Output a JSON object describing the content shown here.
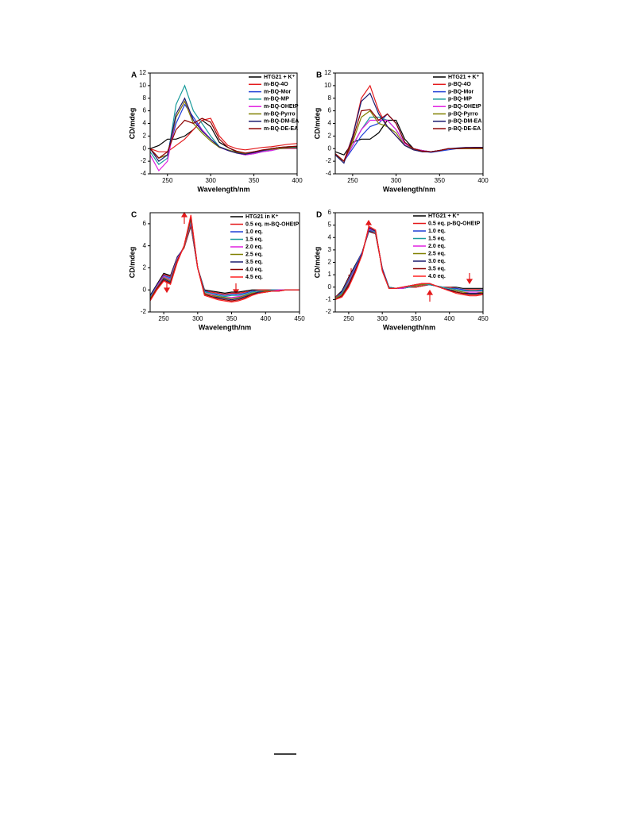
{
  "chart_data": [
    {
      "type": "line",
      "panel_label": "A",
      "xlabel": "Wavelength/nm",
      "ylabel": "CD/mdeg",
      "x": [
        230,
        240,
        250,
        260,
        270,
        280,
        290,
        300,
        310,
        320,
        330,
        340,
        350,
        360,
        370,
        380,
        390,
        400
      ],
      "xlim": [
        230,
        400
      ],
      "ylim": [
        -4,
        12
      ],
      "xticks": [
        250,
        300,
        350,
        400
      ],
      "yticks": [
        -4,
        -2,
        0,
        2,
        4,
        6,
        8,
        10,
        12
      ],
      "series": [
        {
          "name": "HTG21 + K⁺",
          "color": "#000000",
          "values": [
            0,
            0.5,
            1.5,
            1.5,
            2,
            3,
            4.5,
            3.5,
            1,
            0.2,
            -0.5,
            -0.8,
            -0.5,
            -0.3,
            0,
            0.2,
            0.2,
            0.2
          ]
        },
        {
          "name": "m-BQ-4O",
          "color": "#e41a1c",
          "values": [
            0,
            -0.5,
            -0.5,
            0.5,
            1.5,
            3,
            4.5,
            4.8,
            2,
            0.5,
            0,
            -0.2,
            0,
            0.2,
            0.3,
            0.5,
            0.7,
            0.8
          ]
        },
        {
          "name": "m-BQ-Mor",
          "color": "#1f3fd6",
          "values": [
            0,
            -1.5,
            -1,
            4,
            7,
            5,
            3,
            1.5,
            0.3,
            -0.2,
            -0.6,
            -0.9,
            -0.7,
            -0.4,
            -0.2,
            0,
            0.1,
            0.1
          ]
        },
        {
          "name": "m-BQ-MP",
          "color": "#1a9c9c",
          "values": [
            -0.5,
            -2.5,
            -1.5,
            7,
            10,
            6,
            4,
            2,
            0.3,
            -0.2,
            -0.7,
            -1,
            -0.8,
            -0.5,
            -0.3,
            0,
            0.1,
            0.2
          ]
        },
        {
          "name": "m-BQ-OHEtP",
          "color": "#e020e0",
          "values": [
            -1,
            -3.5,
            -2,
            5,
            7.5,
            4.5,
            3,
            1.5,
            0.2,
            -0.3,
            -0.7,
            -1,
            -0.8,
            -0.5,
            -0.3,
            0,
            0,
            0
          ]
        },
        {
          "name": "m-BQ-Pyrro",
          "color": "#808000",
          "values": [
            0,
            -1.5,
            -1,
            5,
            7.5,
            4,
            2.5,
            1.2,
            0.2,
            -0.2,
            -0.6,
            -0.8,
            -0.6,
            -0.3,
            -0.1,
            0,
            0.1,
            0.1
          ]
        },
        {
          "name": "m-BQ-DM-EA",
          "color": "#1a1a6e",
          "values": [
            0,
            -2,
            -1,
            5.5,
            8,
            4.5,
            2.8,
            1.5,
            0.3,
            -0.3,
            -0.7,
            -0.9,
            -0.6,
            -0.3,
            0,
            0.2,
            0.3,
            0.3
          ]
        },
        {
          "name": "m-BQ-DE-EA",
          "color": "#8b0000",
          "values": [
            0,
            -1.5,
            -0.5,
            3,
            4.5,
            4,
            4.8,
            4.2,
            1.5,
            0.2,
            -0.4,
            -0.7,
            -0.5,
            -0.2,
            0,
            0.2,
            0.3,
            0.4
          ]
        }
      ]
    },
    {
      "type": "line",
      "panel_label": "B",
      "xlabel": "Wavelength/nm",
      "ylabel": "CD/mdeg",
      "x": [
        230,
        240,
        250,
        260,
        270,
        280,
        290,
        300,
        310,
        320,
        330,
        340,
        350,
        360,
        370,
        380,
        390,
        400
      ],
      "xlim": [
        230,
        400
      ],
      "ylim": [
        -4,
        12
      ],
      "xticks": [
        250,
        300,
        350,
        400
      ],
      "yticks": [
        -4,
        -2,
        0,
        2,
        4,
        6,
        8,
        10,
        12
      ],
      "series": [
        {
          "name": "HTG21 + K⁺",
          "color": "#000000",
          "values": [
            -0.5,
            -1,
            1,
            1.5,
            1.5,
            2.5,
            4.5,
            4.5,
            1.5,
            0,
            -0.3,
            -0.5,
            -0.3,
            0,
            0,
            0.1,
            0.2,
            0.2
          ]
        },
        {
          "name": "p-BQ-4O",
          "color": "#e41a1c",
          "values": [
            -1,
            -2,
            2,
            8,
            10,
            6,
            3.5,
            2,
            0.5,
            -0.2,
            -0.5,
            -0.5,
            -0.3,
            0,
            0,
            0,
            0,
            0
          ]
        },
        {
          "name": "p-BQ-Mor",
          "color": "#1f3fd6",
          "values": [
            -1,
            -2,
            0,
            2,
            3.5,
            4,
            5.5,
            4,
            1,
            0,
            -0.4,
            -0.6,
            -0.4,
            -0.2,
            0,
            0,
            0,
            0
          ]
        },
        {
          "name": "p-BQ-MP",
          "color": "#1a9c9c",
          "values": [
            -1,
            -2,
            0.5,
            3,
            5,
            5,
            4.5,
            3,
            0.8,
            0,
            -0.4,
            -0.5,
            -0.3,
            0,
            0,
            0,
            0,
            0
          ]
        },
        {
          "name": "p-BQ-OHEtP",
          "color": "#e020e0",
          "values": [
            -1,
            -2,
            0.5,
            3,
            4.5,
            4.5,
            4.5,
            3,
            0.8,
            0,
            -0.3,
            -0.5,
            -0.3,
            0,
            0,
            0,
            0,
            0
          ]
        },
        {
          "name": "p-BQ-Pyrro",
          "color": "#808000",
          "values": [
            -1,
            -2,
            1,
            5,
            6,
            4,
            3.5,
            2.5,
            0.5,
            0,
            -0.4,
            -0.5,
            -0.3,
            0,
            0,
            0,
            0,
            0
          ]
        },
        {
          "name": "p-BQ-DM-EA",
          "color": "#1a1a6e",
          "values": [
            -1,
            -2.3,
            2,
            7.5,
            8.8,
            5.5,
            3.5,
            2,
            0.5,
            -0.2,
            -0.5,
            -0.5,
            -0.3,
            0,
            0.1,
            0.2,
            0.2,
            0.2
          ]
        },
        {
          "name": "p-BQ-DE-EA",
          "color": "#8b0000",
          "values": [
            -0.8,
            -2,
            1.5,
            6,
            6.2,
            4.5,
            5.5,
            4,
            1,
            0,
            -0.4,
            -0.5,
            -0.3,
            0,
            0,
            0.1,
            0.1,
            0.1
          ]
        }
      ]
    },
    {
      "type": "line",
      "panel_label": "C",
      "xlabel": "Wavelength/nm",
      "ylabel": "CD/mdeg",
      "x": [
        230,
        240,
        250,
        260,
        270,
        280,
        290,
        300,
        310,
        320,
        330,
        340,
        350,
        360,
        370,
        380,
        390,
        400,
        410,
        420,
        430,
        440,
        450
      ],
      "xlim": [
        230,
        450
      ],
      "ylim": [
        -2,
        7
      ],
      "xticks": [
        250,
        300,
        350,
        400,
        450
      ],
      "yticks": [
        -2,
        0,
        2,
        4,
        6
      ],
      "series": [
        {
          "name": "HTG21  in K⁺",
          "color": "#000000",
          "values": [
            -0.5,
            0.5,
            1.5,
            1.3,
            3,
            3.8,
            5.8,
            2,
            0,
            -0.1,
            -0.2,
            -0.3,
            -0.2,
            -0.2,
            -0.1,
            0,
            0,
            0,
            0,
            0,
            0,
            0,
            0
          ]
        },
        {
          "name": "0.5 eq. m-BQ-OHEtP",
          "color": "#e41a1c",
          "values": [
            -0.6,
            0.4,
            1.4,
            1.2,
            2.9,
            3.8,
            5.9,
            2,
            -0.1,
            -0.2,
            -0.3,
            -0.4,
            -0.3,
            -0.3,
            -0.2,
            -0.1,
            0,
            0,
            0,
            0,
            0,
            0,
            0
          ]
        },
        {
          "name": "1.0 eq.",
          "color": "#1f3fd6",
          "values": [
            -0.6,
            0.4,
            1.3,
            1.1,
            2.9,
            3.9,
            6.1,
            2,
            -0.1,
            -0.3,
            -0.4,
            -0.5,
            -0.4,
            -0.4,
            -0.3,
            -0.1,
            -0.1,
            -0.1,
            0,
            0,
            0,
            0,
            0
          ]
        },
        {
          "name": "1.5 eq.",
          "color": "#1a9c9c",
          "values": [
            -0.7,
            0.3,
            1.2,
            1,
            2.8,
            3.9,
            6.2,
            2,
            -0.2,
            -0.3,
            -0.5,
            -0.6,
            -0.5,
            -0.5,
            -0.4,
            -0.2,
            -0.1,
            -0.1,
            0,
            0,
            0,
            0,
            0
          ]
        },
        {
          "name": "2.0 eq.",
          "color": "#e020e0",
          "values": [
            -0.8,
            0.3,
            1.2,
            0.9,
            2.8,
            3.9,
            6.3,
            2,
            -0.3,
            -0.4,
            -0.6,
            -0.7,
            -0.7,
            -0.6,
            -0.5,
            -0.3,
            -0.2,
            -0.1,
            -0.1,
            0,
            0,
            0,
            0
          ]
        },
        {
          "name": "2.5 eq.",
          "color": "#808000",
          "values": [
            -0.8,
            0.2,
            1.1,
            0.8,
            2.7,
            3.9,
            6.4,
            2,
            -0.3,
            -0.5,
            -0.6,
            -0.7,
            -0.8,
            -0.7,
            -0.5,
            -0.3,
            -0.2,
            -0.1,
            -0.1,
            -0.1,
            0,
            0,
            0
          ]
        },
        {
          "name": "3.5 eq.",
          "color": "#1a1a6e",
          "values": [
            -0.9,
            0.1,
            1,
            0.7,
            2.6,
            4,
            6.6,
            2,
            -0.4,
            -0.6,
            -0.7,
            -0.8,
            -0.9,
            -0.8,
            -0.6,
            -0.4,
            -0.2,
            -0.2,
            -0.1,
            -0.1,
            0,
            0,
            0
          ]
        },
        {
          "name": "4.0 eq.",
          "color": "#8b0000",
          "values": [
            -0.9,
            0.1,
            0.9,
            0.6,
            2.6,
            4,
            6.7,
            2,
            -0.4,
            -0.6,
            -0.8,
            -0.9,
            -1,
            -0.9,
            -0.7,
            -0.4,
            -0.3,
            -0.2,
            -0.1,
            -0.1,
            0,
            0,
            0
          ]
        },
        {
          "name": "4.5 eq.",
          "color": "#ff2020",
          "values": [
            -1,
            0,
            0.8,
            0.5,
            2.5,
            4,
            6.8,
            2,
            -0.5,
            -0.7,
            -0.9,
            -1,
            -1.1,
            -1,
            -0.8,
            -0.5,
            -0.3,
            -0.2,
            -0.1,
            -0.1,
            0,
            0,
            0
          ]
        }
      ]
    },
    {
      "type": "line",
      "panel_label": "D",
      "xlabel": "Wavelength/nm",
      "ylabel": "CD/mdeg",
      "x": [
        230,
        240,
        250,
        260,
        270,
        280,
        290,
        300,
        310,
        320,
        330,
        340,
        350,
        360,
        370,
        380,
        390,
        400,
        410,
        420,
        430,
        440,
        450
      ],
      "xlim": [
        230,
        450
      ],
      "ylim": [
        -2,
        6
      ],
      "xticks": [
        250,
        300,
        350,
        400,
        450
      ],
      "yticks": [
        -2,
        -1,
        0,
        1,
        2,
        3,
        4,
        5,
        6
      ],
      "series": [
        {
          "name": "HTG21 + K⁺",
          "color": "#000000",
          "values": [
            -0.8,
            -0.3,
            0.8,
            1.8,
            2.8,
            4.5,
            4.3,
            1.5,
            0,
            -0.1,
            -0.1,
            0,
            0,
            0.1,
            0.2,
            0.1,
            0,
            0,
            0,
            -0.1,
            -0.1,
            -0.1,
            -0.1
          ]
        },
        {
          "name": "0.5 eq. p-BQ-OHEtP",
          "color": "#e41a1c",
          "values": [
            -0.8,
            -0.4,
            0.7,
            1.7,
            2.8,
            4.6,
            4.3,
            1.5,
            0,
            -0.1,
            -0.1,
            0,
            0,
            0.1,
            0.2,
            0.1,
            0,
            0,
            -0.1,
            -0.2,
            -0.2,
            -0.2,
            -0.2
          ]
        },
        {
          "name": "1.0 eq.",
          "color": "#1f3fd6",
          "values": [
            -0.9,
            -0.4,
            0.6,
            1.7,
            2.8,
            4.6,
            4.4,
            1.5,
            0,
            -0.1,
            -0.1,
            0,
            0.1,
            0.2,
            0.2,
            0.1,
            0,
            -0.1,
            -0.1,
            -0.2,
            -0.3,
            -0.3,
            -0.2
          ]
        },
        {
          "name": "1.5 eq.",
          "color": "#1a9c9c",
          "values": [
            -0.9,
            -0.5,
            0.5,
            1.6,
            2.7,
            4.7,
            4.4,
            1.4,
            0,
            -0.1,
            -0.1,
            0,
            0.1,
            0.2,
            0.2,
            0.1,
            0,
            -0.1,
            -0.2,
            -0.3,
            -0.3,
            -0.3,
            -0.3
          ]
        },
        {
          "name": "2.0 eq.",
          "color": "#e020e0",
          "values": [
            -0.9,
            -0.6,
            0.4,
            1.5,
            2.7,
            4.7,
            4.5,
            1.4,
            -0.1,
            -0.1,
            -0.1,
            0.1,
            0.1,
            0.2,
            0.3,
            0.1,
            -0.1,
            -0.2,
            -0.3,
            -0.4,
            -0.4,
            -0.4,
            -0.4
          ]
        },
        {
          "name": "2.5 eq.",
          "color": "#808000",
          "values": [
            -0.9,
            -0.6,
            0.3,
            1.4,
            2.7,
            4.8,
            4.5,
            1.4,
            -0.1,
            -0.1,
            0,
            0.1,
            0.1,
            0.2,
            0.3,
            0.1,
            -0.1,
            -0.2,
            -0.3,
            -0.4,
            -0.5,
            -0.5,
            -0.4
          ]
        },
        {
          "name": "3.0 eq.",
          "color": "#1a1a6e",
          "values": [
            -1,
            -0.7,
            0.2,
            1.4,
            2.7,
            4.8,
            4.5,
            1.4,
            -0.1,
            -0.1,
            0,
            0.1,
            0.2,
            0.3,
            0.3,
            0.1,
            -0.1,
            -0.2,
            -0.4,
            -0.5,
            -0.5,
            -0.5,
            -0.5
          ]
        },
        {
          "name": "3.5 eq.",
          "color": "#8b0000",
          "values": [
            -1,
            -0.7,
            0.1,
            1.3,
            2.6,
            4.9,
            4.6,
            1.3,
            -0.1,
            -0.1,
            0,
            0.1,
            0.2,
            0.3,
            0.3,
            0.1,
            -0.1,
            -0.3,
            -0.4,
            -0.5,
            -0.6,
            -0.6,
            -0.5
          ]
        },
        {
          "name": "4.0 eq.",
          "color": "#ff2020",
          "values": [
            -1,
            -0.8,
            0,
            1.2,
            2.6,
            4.9,
            4.6,
            1.3,
            -0.1,
            -0.1,
            0,
            0.1,
            0.2,
            0.3,
            0.3,
            0.1,
            -0.1,
            -0.3,
            -0.5,
            -0.6,
            -0.7,
            -0.7,
            -0.6
          ]
        }
      ]
    }
  ]
}
